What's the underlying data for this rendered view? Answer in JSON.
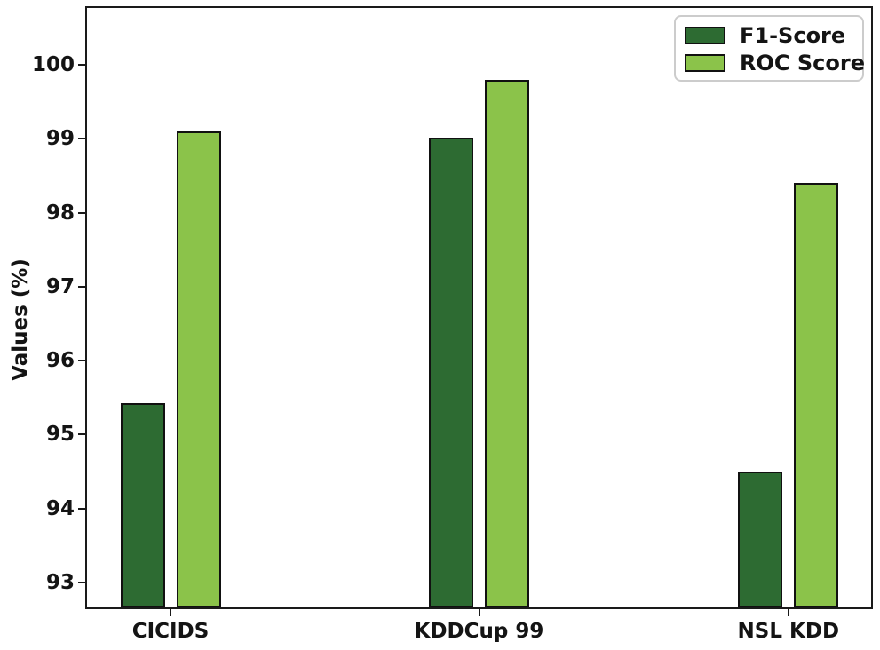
{
  "chart_data": {
    "type": "bar",
    "title": "",
    "categories": [
      "CICIDS",
      "KDDCup 99",
      "NSL KDD"
    ],
    "series": [
      {
        "name": "F1-Score",
        "color": "#2d6b32",
        "values": [
          95.42,
          99.02,
          94.5
        ]
      },
      {
        "name": "ROC Score",
        "color": "#8bc34a",
        "values": [
          99.1,
          99.8,
          98.4
        ]
      }
    ],
    "xlabel": "",
    "ylabel": "Values (%)",
    "yticks": [
      93,
      94,
      95,
      96,
      97,
      98,
      99,
      100
    ],
    "ylim": [
      92.66,
      100.77
    ],
    "grid": false,
    "legend_position": "upper right",
    "bar_edge_color": "#111111",
    "axis_color": "#1a1a1a"
  }
}
